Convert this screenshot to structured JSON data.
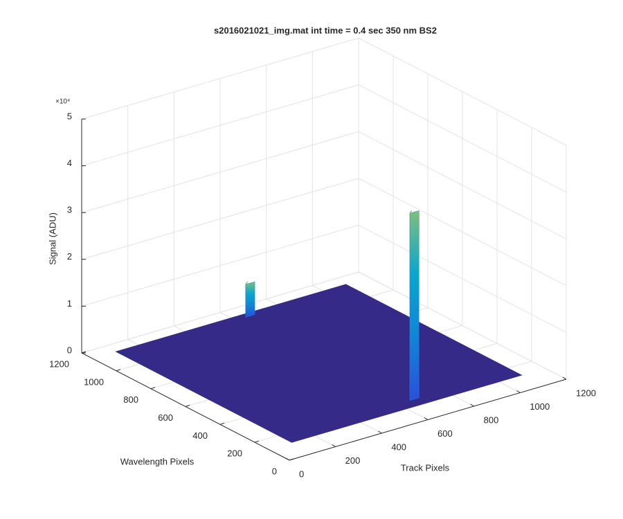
{
  "chart_data": {
    "type": "surface3d",
    "title": "s2016021021_img.mat int time = 0.4 sec  350 nm BS2",
    "x_label": "Track Pixels",
    "y_label": "Wavelength Pixels",
    "z_label": "Signal (ADU)",
    "z_exponent_label": "×10⁴",
    "xlim": [
      0,
      1200
    ],
    "xticks": [
      0,
      200,
      400,
      600,
      800,
      1000,
      1200
    ],
    "ylim": [
      0,
      1200
    ],
    "yticks": [
      0,
      200,
      400,
      600,
      800,
      1000,
      1200
    ],
    "zlim": [
      0,
      50000
    ],
    "zticks": [
      0,
      {
        "value": 10000,
        "label": "1"
      },
      {
        "value": 20000,
        "label": "2"
      },
      {
        "value": 30000,
        "label": "3"
      },
      {
        "value": 40000,
        "label": "4"
      },
      {
        "value": 50000,
        "label": "5"
      }
    ],
    "grid": true,
    "surface_color": "#352a87",
    "peak_colors": [
      "#2a4fd8",
      "#1184d6",
      "#0ba6cc",
      "#7fbf7b"
    ],
    "track_extent": [
      100,
      1100
    ],
    "wavelength_extent": [
      120,
      1140
    ],
    "peaks": [
      {
        "track": 665,
        "wavelength": 1128,
        "value": 7000
      },
      {
        "track": 673,
        "wavelength": 190,
        "value": 40000
      }
    ]
  }
}
